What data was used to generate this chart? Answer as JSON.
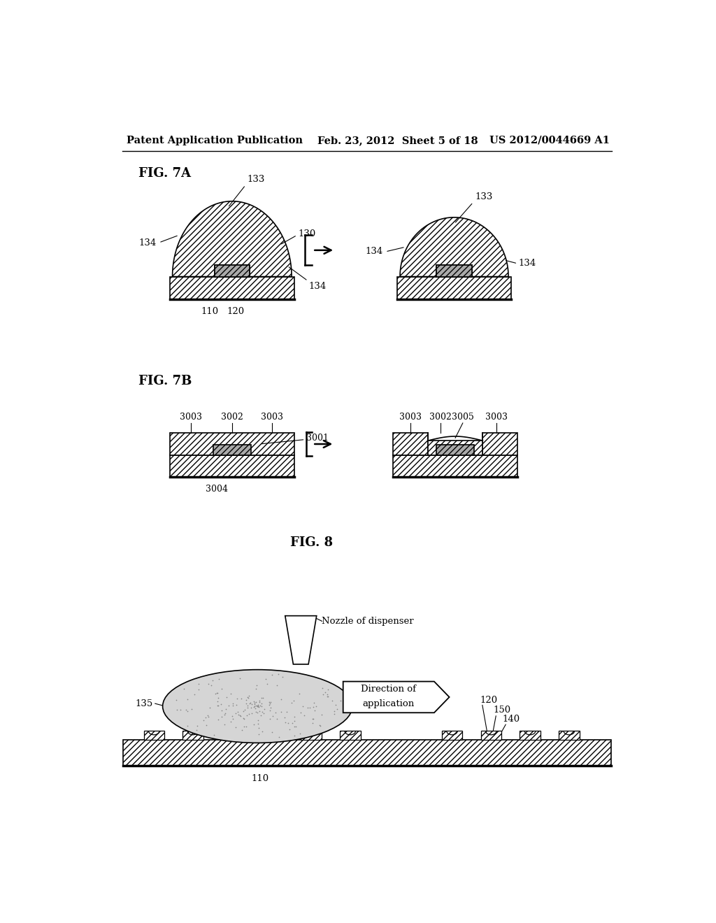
{
  "bg_color": "#ffffff",
  "header_left": "Patent Application Publication",
  "header_mid": "Feb. 23, 2012  Sheet 5 of 18",
  "header_right": "US 2012/0044669 A1",
  "fig7a_label": "FIG. 7A",
  "fig7b_label": "FIG. 7B",
  "fig8_label": "FIG. 8"
}
